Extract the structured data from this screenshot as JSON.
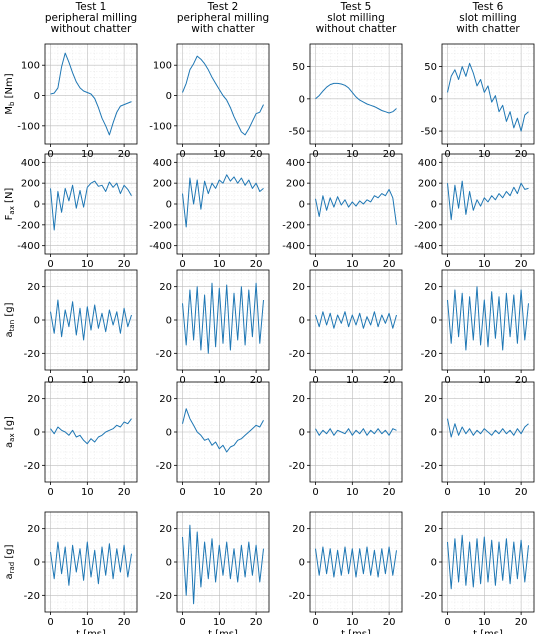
{
  "figure": {
    "columns": [
      {
        "title_lines": [
          "Test 1",
          "peripheral milling",
          "without chatter"
        ]
      },
      {
        "title_lines": [
          "Test 2",
          "peripheral milling",
          "with chatter"
        ]
      },
      {
        "title_lines": [
          "Test 5",
          "slot milling",
          "without chatter"
        ]
      },
      {
        "title_lines": [
          "Test 6",
          "slot milling",
          "with chatter"
        ]
      }
    ],
    "rows": [
      {
        "ylabel_main": "M",
        "ylabel_sub": "b",
        "ylabel_unit": " [Nm]"
      },
      {
        "ylabel_main": "F",
        "ylabel_sub": "ax",
        "ylabel_unit": " [N]"
      },
      {
        "ylabel_main": "a",
        "ylabel_sub": "tan",
        "ylabel_unit": " [g]"
      },
      {
        "ylabel_main": "a",
        "ylabel_sub": "ax",
        "ylabel_unit": " [g]"
      },
      {
        "ylabel_main": "a",
        "ylabel_sub": "rad",
        "ylabel_unit": " [g]"
      }
    ],
    "xlabel": "t [ms]",
    "colors": {
      "series": "#1f77b4",
      "grid_major": "#bdbdbd",
      "grid_minor": "#e2e2e2"
    }
  },
  "chart_data": {
    "type": "line",
    "xlim": [
      -1.5,
      23.5
    ],
    "x_ticks": [
      0,
      10,
      20
    ],
    "grid": true,
    "panels": [
      {
        "row": 0,
        "col": 0,
        "ylim": [
          -160,
          170
        ],
        "y_ticks": [
          -100,
          0,
          100
        ],
        "x": [
          0,
          1,
          2,
          3,
          4,
          5,
          6,
          7,
          8,
          9,
          10,
          11,
          12,
          13,
          14,
          15,
          16,
          17,
          18,
          19,
          20,
          21,
          22
        ],
        "y": [
          5,
          8,
          25,
          95,
          140,
          110,
          75,
          45,
          25,
          15,
          10,
          5,
          -10,
          -40,
          -75,
          -100,
          -130,
          -90,
          -55,
          -35,
          -30,
          -25,
          -20
        ]
      },
      {
        "row": 0,
        "col": 1,
        "ylim": [
          -160,
          170
        ],
        "y_ticks": [
          -100,
          0,
          100
        ],
        "x": [
          0,
          1,
          2,
          3,
          4,
          5,
          6,
          7,
          8,
          9,
          10,
          11,
          12,
          13,
          14,
          15,
          16,
          17,
          18,
          19,
          20,
          21,
          22
        ],
        "y": [
          10,
          40,
          85,
          105,
          130,
          120,
          105,
          85,
          60,
          40,
          20,
          0,
          -15,
          -40,
          -70,
          -95,
          -120,
          -130,
          -110,
          -85,
          -60,
          -55,
          -30
        ]
      },
      {
        "row": 0,
        "col": 2,
        "ylim": [
          -70,
          85
        ],
        "y_ticks": [
          -50,
          0,
          50
        ],
        "x": [
          0,
          1,
          2,
          3,
          4,
          5,
          6,
          7,
          8,
          9,
          10,
          11,
          12,
          13,
          14,
          15,
          16,
          17,
          18,
          19,
          20,
          21,
          22
        ],
        "y": [
          0,
          5,
          12,
          18,
          22,
          24,
          24,
          23,
          21,
          17,
          10,
          3,
          -2,
          -5,
          -8,
          -10,
          -12,
          -15,
          -18,
          -20,
          -22,
          -20,
          -15
        ]
      },
      {
        "row": 0,
        "col": 3,
        "ylim": [
          -70,
          85
        ],
        "y_ticks": [
          -50,
          0,
          50
        ],
        "x": [
          0,
          1,
          2,
          3,
          4,
          5,
          6,
          7,
          8,
          9,
          10,
          11,
          12,
          13,
          14,
          15,
          16,
          17,
          18,
          19,
          20,
          21,
          22
        ],
        "y": [
          10,
          35,
          45,
          30,
          50,
          35,
          55,
          40,
          20,
          30,
          10,
          20,
          -5,
          5,
          -20,
          -10,
          -35,
          -20,
          -45,
          -30,
          -50,
          -25,
          -20
        ]
      },
      {
        "row": 1,
        "col": 0,
        "ylim": [
          -480,
          480
        ],
        "y_ticks": [
          -400,
          -200,
          0,
          200,
          400
        ],
        "x": [
          0,
          1,
          2,
          3,
          4,
          5,
          6,
          7,
          8,
          9,
          10,
          11,
          12,
          13,
          14,
          15,
          16,
          17,
          18,
          19,
          20,
          21,
          22
        ],
        "y": [
          150,
          -250,
          120,
          -80,
          150,
          30,
          180,
          -40,
          130,
          -30,
          160,
          200,
          220,
          170,
          180,
          120,
          210,
          160,
          200,
          100,
          180,
          140,
          80
        ]
      },
      {
        "row": 1,
        "col": 1,
        "ylim": [
          -480,
          480
        ],
        "y_ticks": [
          -400,
          -200,
          0,
          200,
          400
        ],
        "x": [
          0,
          1,
          2,
          3,
          4,
          5,
          6,
          7,
          8,
          9,
          10,
          11,
          12,
          13,
          14,
          15,
          16,
          17,
          18,
          19,
          20,
          21,
          22
        ],
        "y": [
          100,
          -220,
          250,
          0,
          230,
          -50,
          220,
          100,
          200,
          150,
          230,
          200,
          280,
          220,
          260,
          200,
          250,
          180,
          230,
          150,
          200,
          120,
          150
        ]
      },
      {
        "row": 1,
        "col": 2,
        "ylim": [
          -480,
          480
        ],
        "y_ticks": [
          -400,
          -200,
          0,
          200,
          400
        ],
        "x": [
          0,
          1,
          2,
          3,
          4,
          5,
          6,
          7,
          8,
          9,
          10,
          11,
          12,
          13,
          14,
          15,
          16,
          17,
          18,
          19,
          20,
          21,
          22
        ],
        "y": [
          50,
          -120,
          80,
          -60,
          60,
          -30,
          70,
          -10,
          40,
          -30,
          20,
          -20,
          30,
          0,
          40,
          20,
          80,
          60,
          100,
          80,
          140,
          60,
          -200
        ]
      },
      {
        "row": 1,
        "col": 3,
        "ylim": [
          -480,
          480
        ],
        "y_ticks": [
          -400,
          -200,
          0,
          200,
          400
        ],
        "x": [
          0,
          1,
          2,
          3,
          4,
          5,
          6,
          7,
          8,
          9,
          10,
          11,
          12,
          13,
          14,
          15,
          16,
          17,
          18,
          19,
          20,
          21,
          22
        ],
        "y": [
          200,
          -150,
          180,
          -40,
          220,
          -100,
          120,
          -60,
          40,
          -20,
          60,
          20,
          80,
          40,
          100,
          60,
          120,
          80,
          160,
          100,
          200,
          140,
          150
        ]
      },
      {
        "row": 2,
        "col": 0,
        "ylim": [
          -30,
          30
        ],
        "y_ticks": [
          -20,
          0,
          20
        ],
        "x": [
          0,
          1,
          2,
          3,
          4,
          5,
          6,
          7,
          8,
          9,
          10,
          11,
          12,
          13,
          14,
          15,
          16,
          17,
          18,
          19,
          20,
          21,
          22
        ],
        "y": [
          5,
          -8,
          12,
          -10,
          6,
          -4,
          11,
          -9,
          7,
          -12,
          8,
          -6,
          9,
          -5,
          4,
          -7,
          6,
          -3,
          5,
          -8,
          7,
          -4,
          3
        ]
      },
      {
        "row": 2,
        "col": 1,
        "ylim": [
          -30,
          30
        ],
        "y_ticks": [
          -20,
          0,
          20
        ],
        "x": [
          0,
          1,
          2,
          3,
          4,
          5,
          6,
          7,
          8,
          9,
          10,
          11,
          12,
          13,
          14,
          15,
          16,
          17,
          18,
          19,
          20,
          21,
          22
        ],
        "y": [
          10,
          -15,
          18,
          -12,
          20,
          -18,
          15,
          -20,
          22,
          -16,
          19,
          -14,
          21,
          -18,
          16,
          -12,
          20,
          -15,
          18,
          -10,
          22,
          -14,
          12
        ]
      },
      {
        "row": 2,
        "col": 2,
        "ylim": [
          -30,
          30
        ],
        "y_ticks": [
          -20,
          0,
          20
        ],
        "x": [
          0,
          1,
          2,
          3,
          4,
          5,
          6,
          7,
          8,
          9,
          10,
          11,
          12,
          13,
          14,
          15,
          16,
          17,
          18,
          19,
          20,
          21,
          22
        ],
        "y": [
          3,
          -4,
          5,
          -3,
          4,
          -5,
          3,
          -2,
          5,
          -4,
          3,
          -3,
          4,
          -5,
          2,
          -3,
          5,
          -4,
          3,
          -2,
          4,
          -5,
          3
        ]
      },
      {
        "row": 2,
        "col": 3,
        "ylim": [
          -30,
          30
        ],
        "y_ticks": [
          -20,
          0,
          20
        ],
        "x": [
          0,
          1,
          2,
          3,
          4,
          5,
          6,
          7,
          8,
          9,
          10,
          11,
          12,
          13,
          14,
          15,
          16,
          17,
          18,
          19,
          20,
          21,
          22
        ],
        "y": [
          12,
          -14,
          18,
          -10,
          16,
          -18,
          14,
          -12,
          20,
          -15,
          12,
          -16,
          17,
          -11,
          14,
          -18,
          16,
          -10,
          15,
          -14,
          18,
          -12,
          10
        ]
      },
      {
        "row": 3,
        "col": 0,
        "ylim": [
          -30,
          30
        ],
        "y_ticks": [
          -20,
          0,
          20
        ],
        "x": [
          0,
          1,
          2,
          3,
          4,
          5,
          6,
          7,
          8,
          9,
          10,
          11,
          12,
          13,
          14,
          15,
          16,
          17,
          18,
          19,
          20,
          21,
          22
        ],
        "y": [
          2,
          -1,
          3,
          1,
          0,
          -2,
          1,
          -3,
          -2,
          -5,
          -7,
          -4,
          -6,
          -3,
          -2,
          0,
          1,
          2,
          4,
          3,
          6,
          5,
          8
        ]
      },
      {
        "row": 3,
        "col": 1,
        "ylim": [
          -30,
          30
        ],
        "y_ticks": [
          -20,
          0,
          20
        ],
        "x": [
          0,
          1,
          2,
          3,
          4,
          5,
          6,
          7,
          8,
          9,
          10,
          11,
          12,
          13,
          14,
          15,
          16,
          17,
          18,
          19,
          20,
          21,
          22
        ],
        "y": [
          5,
          14,
          8,
          4,
          0,
          -2,
          -5,
          -4,
          -8,
          -6,
          -10,
          -8,
          -12,
          -9,
          -8,
          -5,
          -4,
          -2,
          0,
          2,
          4,
          3,
          7
        ]
      },
      {
        "row": 3,
        "col": 2,
        "ylim": [
          -30,
          30
        ],
        "y_ticks": [
          -20,
          0,
          20
        ],
        "x": [
          0,
          1,
          2,
          3,
          4,
          5,
          6,
          7,
          8,
          9,
          10,
          11,
          12,
          13,
          14,
          15,
          16,
          17,
          18,
          19,
          20,
          21,
          22
        ],
        "y": [
          2,
          -2,
          1,
          -1,
          2,
          -2,
          1,
          0,
          -1,
          2,
          -2,
          1,
          -1,
          2,
          -2,
          1,
          -1,
          2,
          -1,
          1,
          -2,
          2,
          1
        ]
      },
      {
        "row": 3,
        "col": 3,
        "ylim": [
          -30,
          30
        ],
        "y_ticks": [
          -20,
          0,
          20
        ],
        "x": [
          0,
          1,
          2,
          3,
          4,
          5,
          6,
          7,
          8,
          9,
          10,
          11,
          12,
          13,
          14,
          15,
          16,
          17,
          18,
          19,
          20,
          21,
          22
        ],
        "y": [
          8,
          -3,
          5,
          -2,
          3,
          -1,
          2,
          -2,
          1,
          -1,
          2,
          0,
          -2,
          1,
          -1,
          2,
          -1,
          1,
          -2,
          2,
          -1,
          3,
          5
        ]
      },
      {
        "row": 4,
        "col": 0,
        "ylim": [
          -30,
          30
        ],
        "y_ticks": [
          -20,
          0,
          20
        ],
        "x": [
          0,
          1,
          2,
          3,
          4,
          5,
          6,
          7,
          8,
          9,
          10,
          11,
          12,
          13,
          14,
          15,
          16,
          17,
          18,
          19,
          20,
          21,
          22
        ],
        "y": [
          6,
          -10,
          12,
          -7,
          9,
          -14,
          10,
          -6,
          8,
          -11,
          12,
          -9,
          7,
          -13,
          9,
          -8,
          11,
          -10,
          8,
          -6,
          10,
          -9,
          5
        ]
      },
      {
        "row": 4,
        "col": 1,
        "ylim": [
          -30,
          30
        ],
        "y_ticks": [
          -20,
          0,
          20
        ],
        "x": [
          0,
          1,
          2,
          3,
          4,
          5,
          6,
          7,
          8,
          9,
          10,
          11,
          12,
          13,
          14,
          15,
          16,
          17,
          18,
          19,
          20,
          21,
          22
        ],
        "y": [
          15,
          -20,
          22,
          -25,
          18,
          -15,
          12,
          -10,
          14,
          -12,
          10,
          -8,
          12,
          -10,
          8,
          -12,
          10,
          -9,
          12,
          -8,
          10,
          -12,
          8
        ]
      },
      {
        "row": 4,
        "col": 2,
        "ylim": [
          -30,
          30
        ],
        "y_ticks": [
          -20,
          0,
          20
        ],
        "x": [
          0,
          1,
          2,
          3,
          4,
          5,
          6,
          7,
          8,
          9,
          10,
          11,
          12,
          13,
          14,
          15,
          16,
          17,
          18,
          19,
          20,
          21,
          22
        ],
        "y": [
          8,
          -8,
          9,
          -7,
          8,
          -9,
          7,
          -8,
          9,
          -7,
          8,
          -9,
          8,
          -7,
          9,
          -8,
          7,
          -9,
          8,
          -7,
          9,
          -8,
          7
        ]
      },
      {
        "row": 4,
        "col": 3,
        "ylim": [
          -30,
          30
        ],
        "y_ticks": [
          -20,
          0,
          20
        ],
        "x": [
          0,
          1,
          2,
          3,
          4,
          5,
          6,
          7,
          8,
          9,
          10,
          11,
          12,
          13,
          14,
          15,
          16,
          17,
          18,
          19,
          20,
          21,
          22
        ],
        "y": [
          12,
          -16,
          14,
          -12,
          16,
          -14,
          12,
          -15,
          14,
          -13,
          15,
          -12,
          13,
          -14,
          12,
          -11,
          14,
          -13,
          12,
          -10,
          13,
          -12,
          10
        ]
      }
    ]
  }
}
